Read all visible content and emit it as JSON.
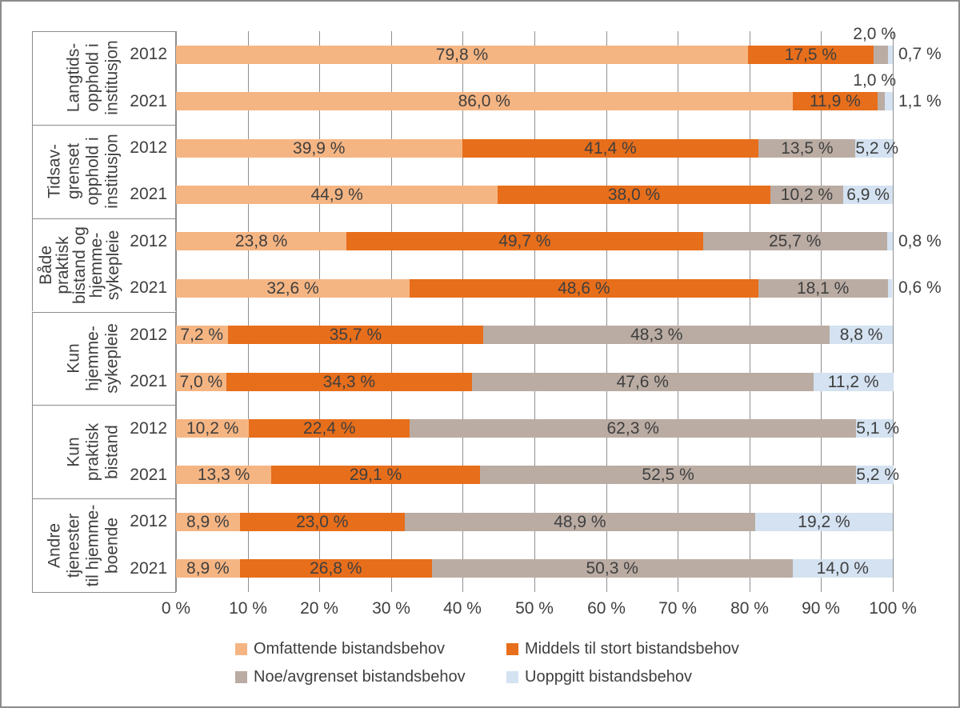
{
  "chart_data": {
    "type": "bar",
    "orientation": "horizontal-stacked",
    "x_axis": {
      "min": 0,
      "max": 100,
      "step": 10,
      "tick_labels": [
        "0 %",
        "10 %",
        "20 %",
        "30 %",
        "40 %",
        "50 %",
        "60 %",
        "70 %",
        "80 %",
        "90 %",
        "100 %"
      ]
    },
    "series": [
      {
        "name": "Omfattende bistandsbehov",
        "color": "#F5B583"
      },
      {
        "name": "Middels til stort bistandsbehov",
        "color": "#E76E1B"
      },
      {
        "name": "Noe/avgrenset bistandsbehov",
        "color": "#BAACA3"
      },
      {
        "name": "Uoppgitt bistandsbehov",
        "color": "#D4E2F1"
      }
    ],
    "groups": [
      {
        "label_lines": [
          "Langtids-",
          "opphold i",
          "institusjon"
        ],
        "rows": [
          {
            "year": "2012",
            "values": [
              79.8,
              17.5,
              2.0,
              0.7
            ],
            "labels": [
              "79,8 %",
              "17,5 %",
              "2,0 %",
              "0,7 %"
            ],
            "placement": [
              "in",
              "in",
              "above",
              "right"
            ]
          },
          {
            "year": "2021",
            "values": [
              86.0,
              11.9,
              1.0,
              1.1
            ],
            "labels": [
              "86,0 %",
              "11,9 %",
              "1,0 %",
              "1,1 %"
            ],
            "placement": [
              "in",
              "in",
              "above",
              "right"
            ]
          }
        ]
      },
      {
        "label_lines": [
          "Tidsav-",
          "grenset",
          "opphold i",
          "institusjon"
        ],
        "rows": [
          {
            "year": "2012",
            "values": [
              39.9,
              41.4,
              13.5,
              5.2
            ],
            "labels": [
              "39,9 %",
              "41,4 %",
              "13,5 %",
              "5,2 %"
            ],
            "placement": [
              "in",
              "in",
              "in",
              "in"
            ]
          },
          {
            "year": "2021",
            "values": [
              44.9,
              38.0,
              10.2,
              6.9
            ],
            "labels": [
              "44,9 %",
              "38,0 %",
              "10,2 %",
              "6,9 %"
            ],
            "placement": [
              "in",
              "in",
              "in",
              "in"
            ]
          }
        ]
      },
      {
        "label_lines": [
          "Både",
          "praktisk",
          "bistand og",
          "hjemme-",
          "sykepleie"
        ],
        "rows": [
          {
            "year": "2012",
            "values": [
              23.8,
              49.7,
              25.7,
              0.8
            ],
            "labels": [
              "23,8 %",
              "49,7 %",
              "25,7 %",
              "0,8 %"
            ],
            "placement": [
              "in",
              "in",
              "in",
              "right"
            ]
          },
          {
            "year": "2021",
            "values": [
              32.6,
              48.6,
              18.1,
              0.6
            ],
            "labels": [
              "32,6 %",
              "48,6 %",
              "18,1 %",
              "0,6 %"
            ],
            "placement": [
              "in",
              "in",
              "in",
              "right"
            ]
          }
        ]
      },
      {
        "label_lines": [
          "Kun",
          "hjemme-",
          "sykepleie"
        ],
        "rows": [
          {
            "year": "2012",
            "values": [
              7.2,
              35.7,
              48.3,
              8.8
            ],
            "labels": [
              "7,2 %",
              "35,7 %",
              "48,3 %",
              "8,8 %"
            ],
            "placement": [
              "in",
              "in",
              "in",
              "in"
            ]
          },
          {
            "year": "2021",
            "values": [
              7.0,
              34.3,
              47.6,
              11.2
            ],
            "labels": [
              "7,0 %",
              "34,3 %",
              "47,6 %",
              "11,2 %"
            ],
            "placement": [
              "in",
              "in",
              "in",
              "in"
            ]
          }
        ]
      },
      {
        "label_lines": [
          "Kun",
          "praktisk",
          "bistand"
        ],
        "rows": [
          {
            "year": "2012",
            "values": [
              10.2,
              22.4,
              62.3,
              5.1
            ],
            "labels": [
              "10,2 %",
              "22,4 %",
              "62,3 %",
              "5,1 %"
            ],
            "placement": [
              "in",
              "in",
              "in",
              "in"
            ]
          },
          {
            "year": "2021",
            "values": [
              13.3,
              29.1,
              52.5,
              5.2
            ],
            "labels": [
              "13,3 %",
              "29,1 %",
              "52,5 %",
              "5,2 %"
            ],
            "placement": [
              "in",
              "in",
              "in",
              "in"
            ]
          }
        ]
      },
      {
        "label_lines": [
          "Andre",
          "tjenester",
          "til hjemme-",
          "boende"
        ],
        "rows": [
          {
            "year": "2012",
            "values": [
              8.9,
              23.0,
              48.9,
              19.2
            ],
            "labels": [
              "8,9 %",
              "23,0 %",
              "48,9 %",
              "19,2 %"
            ],
            "placement": [
              "in",
              "in",
              "in",
              "in"
            ]
          },
          {
            "year": "2021",
            "values": [
              8.9,
              26.8,
              50.3,
              14.0
            ],
            "labels": [
              "8,9 %",
              "26,8 %",
              "50,3 %",
              "14,0 %"
            ],
            "placement": [
              "in",
              "in",
              "in",
              "in"
            ]
          }
        ]
      }
    ],
    "legend": {
      "position": "bottom",
      "columns": 2,
      "items": [
        "Omfattende bistandsbehov",
        "Middels til stort bistandsbehov",
        "Noe/avgrenset bistandsbehov",
        "Uoppgitt bistandsbehov"
      ]
    },
    "colors": {
      "text": "#3F3F3F",
      "gridline": "#909090",
      "box_border": "#8C8C8C",
      "frame": "#8C8C8C"
    }
  }
}
